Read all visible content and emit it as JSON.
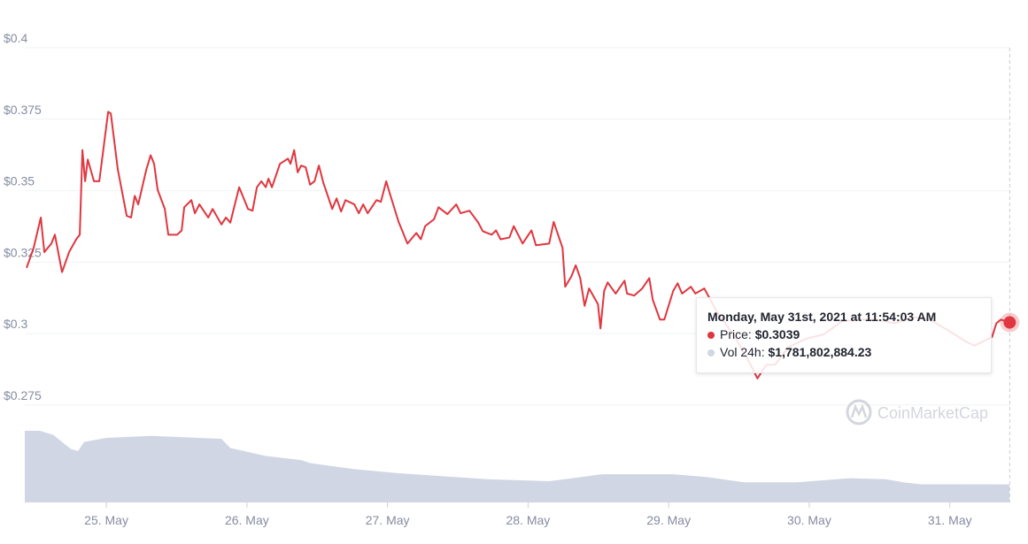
{
  "chart_data": {
    "type": "line",
    "xlim": [
      24.42,
      31.43
    ],
    "xticks": [
      {
        "value": 25,
        "label": "25. May"
      },
      {
        "value": 26,
        "label": "26. May"
      },
      {
        "value": 27,
        "label": "27. May"
      },
      {
        "value": 28,
        "label": "28. May"
      },
      {
        "value": 29,
        "label": "29. May"
      },
      {
        "value": 30,
        "label": "30. May"
      },
      {
        "value": 31,
        "label": "31. May"
      }
    ],
    "ylim": [
      0.2725,
      0.4
    ],
    "yticks": [
      {
        "value": 0.4,
        "label": "$0.4"
      },
      {
        "value": 0.375,
        "label": "$0.375"
      },
      {
        "value": 0.35,
        "label": "$0.35"
      },
      {
        "value": 0.325,
        "label": "$0.325"
      },
      {
        "value": 0.3,
        "label": "$0.3"
      },
      {
        "value": 0.275,
        "label": "$0.275"
      }
    ],
    "y2lim": [
      0,
      10000000000
    ],
    "grid": true,
    "watermark": "CoinMarketCap",
    "series": [
      {
        "name": "Price",
        "color": "#e0363f",
        "x": [
          24.433,
          24.483,
          24.534,
          24.559,
          24.609,
          24.634,
          24.685,
          24.735,
          24.786,
          24.811,
          24.83,
          24.849,
          24.868,
          24.912,
          24.95,
          25.013,
          25.032,
          25.082,
          25.145,
          25.176,
          25.202,
          25.227,
          25.284,
          25.315,
          25.34,
          25.365,
          25.416,
          25.441,
          25.504,
          25.536,
          25.554,
          25.605,
          25.63,
          25.662,
          25.725,
          25.756,
          25.819,
          25.851,
          25.882,
          25.914,
          25.945,
          26.008,
          26.04,
          26.071,
          26.103,
          26.134,
          26.153,
          26.178,
          26.235,
          26.292,
          26.31,
          26.336,
          26.361,
          26.386,
          26.418,
          26.449,
          26.481,
          26.512,
          26.544,
          26.607,
          26.638,
          26.67,
          26.701,
          26.764,
          26.796,
          26.827,
          26.859,
          26.922,
          26.953,
          26.991,
          27.016,
          27.079,
          27.142,
          27.205,
          27.237,
          27.268,
          27.331,
          27.363,
          27.426,
          27.489,
          27.52,
          27.583,
          27.646,
          27.678,
          27.741,
          27.772,
          27.804,
          27.867,
          27.898,
          27.961,
          28.024,
          28.056,
          28.15,
          28.182,
          28.213,
          28.245,
          28.264,
          28.308,
          28.339,
          28.371,
          28.402,
          28.434,
          28.497,
          28.515,
          28.541,
          28.566,
          28.623,
          28.686,
          28.704,
          28.755,
          28.812,
          28.862,
          28.887,
          28.938,
          28.969,
          29.032,
          29.064,
          29.095,
          29.158,
          29.19,
          29.253,
          29.347,
          29.473,
          29.599,
          29.631,
          29.694,
          29.757,
          29.851,
          29.977,
          30.103,
          30.229,
          30.355,
          30.481,
          30.607,
          30.733,
          30.859,
          30.985,
          31.111,
          31.174,
          31.3,
          31.331,
          31.363,
          31.426
        ],
        "values": [
          0.323,
          0.33,
          0.3406,
          0.3285,
          0.3315,
          0.3346,
          0.3215,
          0.3285,
          0.333,
          0.3346,
          0.3642,
          0.3533,
          0.3609,
          0.3533,
          0.3533,
          0.3776,
          0.377,
          0.3573,
          0.3412,
          0.3406,
          0.3482,
          0.3452,
          0.3573,
          0.3624,
          0.3594,
          0.3503,
          0.3436,
          0.3346,
          0.3346,
          0.3361,
          0.3442,
          0.3467,
          0.3421,
          0.3452,
          0.3406,
          0.3436,
          0.3382,
          0.3406,
          0.3388,
          0.3452,
          0.3512,
          0.3436,
          0.343,
          0.3512,
          0.3533,
          0.3512,
          0.3542,
          0.3512,
          0.3594,
          0.3612,
          0.3594,
          0.3642,
          0.3564,
          0.3588,
          0.3582,
          0.3521,
          0.3533,
          0.3588,
          0.3527,
          0.3436,
          0.3473,
          0.3427,
          0.3467,
          0.3452,
          0.3421,
          0.3452,
          0.3421,
          0.3467,
          0.3461,
          0.3533,
          0.3491,
          0.3391,
          0.3315,
          0.3352,
          0.333,
          0.3376,
          0.34,
          0.3442,
          0.3418,
          0.3452,
          0.3421,
          0.343,
          0.3388,
          0.3358,
          0.3346,
          0.3361,
          0.333,
          0.3336,
          0.3376,
          0.3315,
          0.3361,
          0.3309,
          0.3315,
          0.3391,
          0.3346,
          0.33,
          0.3164,
          0.32,
          0.3239,
          0.3194,
          0.3097,
          0.3158,
          0.3103,
          0.3018,
          0.3149,
          0.3179,
          0.314,
          0.3185,
          0.314,
          0.3133,
          0.3158,
          0.3194,
          0.3118,
          0.3049,
          0.3049,
          0.3149,
          0.3176,
          0.314,
          0.3164,
          0.314,
          0.3158,
          0.3073,
          0.2988,
          0.2876,
          0.2843,
          0.2891,
          0.2891,
          0.2952,
          0.2982,
          0.2997,
          0.3042,
          0.3049,
          0.3049,
          0.3036,
          0.3058,
          0.3049,
          0.3012,
          0.2973,
          0.2958,
          0.2988,
          0.3036,
          0.3049,
          0.3039
        ]
      },
      {
        "name": "Vol 24h",
        "color": "#d0d6e3",
        "axis": "y2",
        "x": [
          24.42,
          24.527,
          24.622,
          24.685,
          24.748,
          24.798,
          24.842,
          25.0,
          25.315,
          25.819,
          25.882,
          26.134,
          26.386,
          26.449,
          26.764,
          27.079,
          27.394,
          27.709,
          28.15,
          28.527,
          29.031,
          29.283,
          29.535,
          29.913,
          30.29,
          30.542,
          30.668,
          30.794,
          31.046,
          31.424
        ],
        "values": [
          7100000000,
          7100000000,
          6700000000,
          6000000000,
          5300000000,
          5100000000,
          6000000000,
          6400000000,
          6600000000,
          6300000000,
          5400000000,
          4600000000,
          4200000000,
          3900000000,
          3300000000,
          2900000000,
          2600000000,
          2300000000,
          2100000000,
          2800000000,
          2800000000,
          2500000000,
          2000000000,
          2000000000,
          2400000000,
          2300000000,
          2000000000,
          1800000000,
          1800000000,
          1781802884.23
        ]
      }
    ],
    "tooltip": {
      "title": "Monday, May 31st, 2021 at 11:54:03 AM",
      "items": [
        {
          "label": "Price:",
          "value": "$0.3039"
        },
        {
          "label": "Vol 24h:",
          "value": "$1,781,802,884.23"
        }
      ]
    }
  }
}
